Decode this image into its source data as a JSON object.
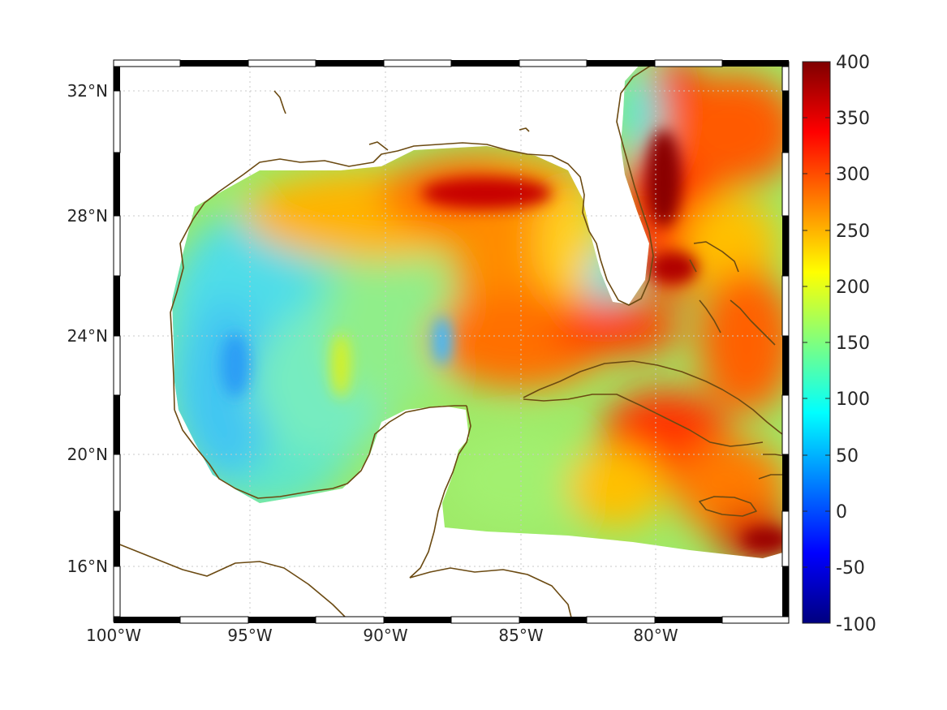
{
  "map": {
    "region": "Gulf of Mexico and western Caribbean",
    "lon_ticks": [
      "100°W",
      "95°W",
      "90°W",
      "85°W",
      "80°W"
    ],
    "lat_ticks": [
      "32°N",
      "28°N",
      "24°N",
      "20°N",
      "16°N"
    ],
    "lon_range": [
      -100,
      -75
    ],
    "lat_range": [
      14.2,
      33
    ],
    "grid": true,
    "coastline_color": "#6b4a12",
    "frame": "alternating black-white"
  },
  "colorbar": {
    "colormap": "jet",
    "range": [
      -100,
      400
    ],
    "ticks": [
      "400",
      "350",
      "300",
      "250",
      "200",
      "150",
      "100",
      "50",
      "0",
      "-50",
      "-100"
    ]
  }
}
